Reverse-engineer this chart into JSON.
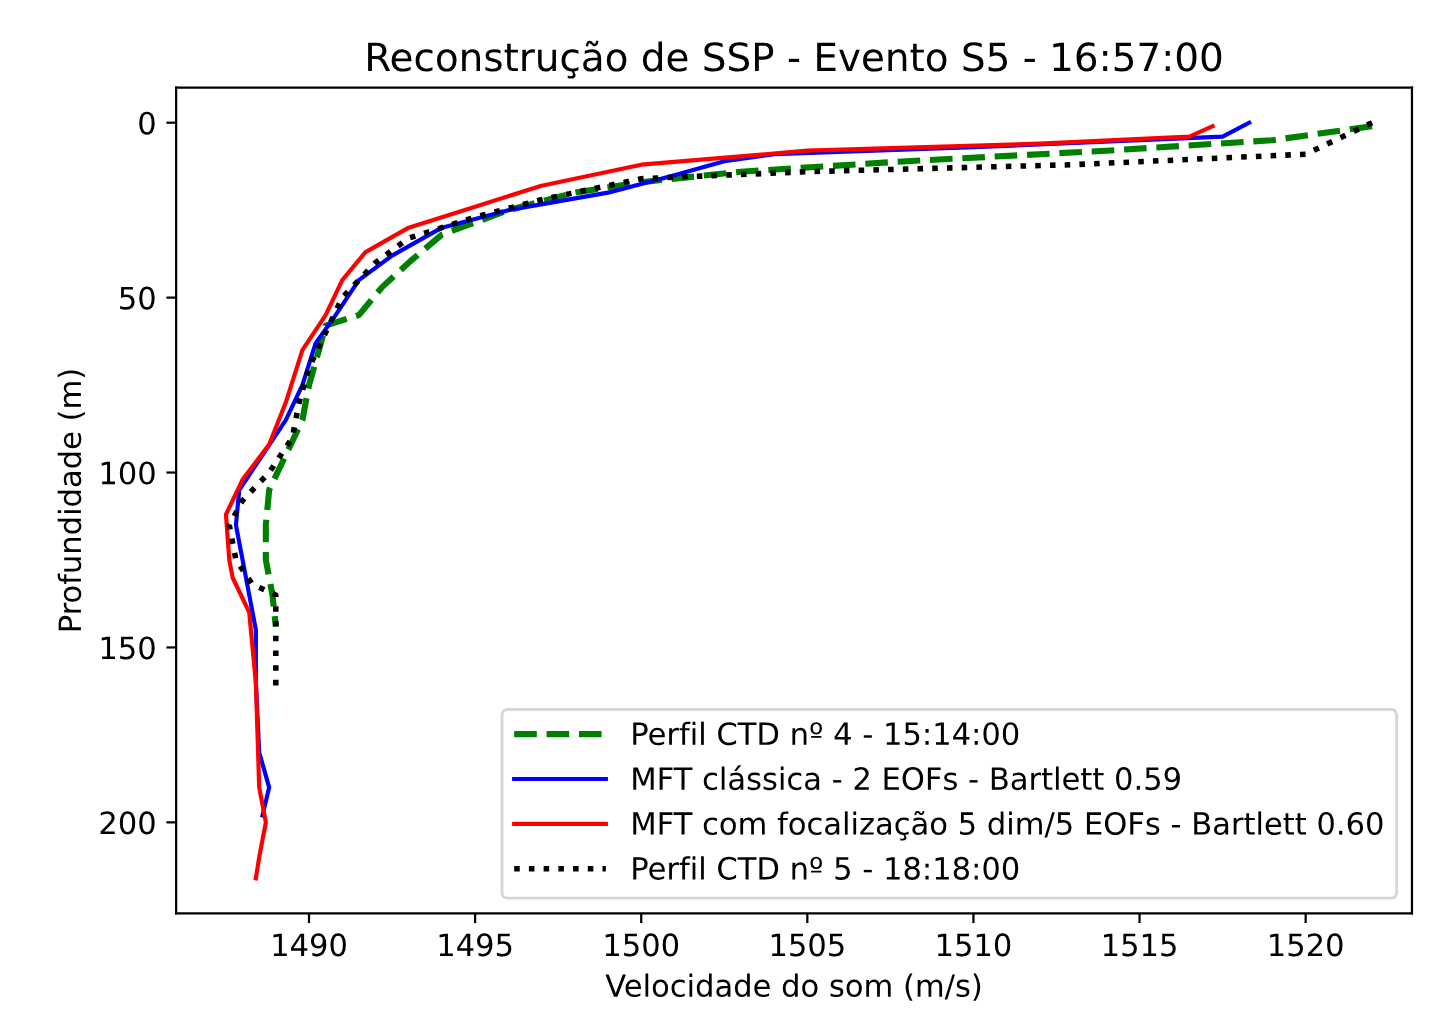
{
  "chart_data": {
    "type": "line",
    "title": "Reconstrução de SSP - Evento S5 - 16:57:00",
    "xlabel": "Velocidade do som (m/s)",
    "ylabel": "Profundidade (m)",
    "xlim": [
      1486,
      1523.2
    ],
    "xticks": [
      1490,
      1495,
      1500,
      1505,
      1510,
      1515,
      1520
    ],
    "ylim": [
      226,
      -10
    ],
    "yticks": [
      0,
      50,
      100,
      150,
      200
    ],
    "grid": false,
    "legend": "bottom right",
    "series": [
      {
        "name": "Perfil CTD nº 4 - 15:14:00",
        "color": "#008000",
        "line_style": "dashed",
        "x": [
          1522,
          1519,
          1514,
          1508,
          1503,
          1500,
          1498,
          1496,
          1494,
          1493,
          1492.2,
          1491.5,
          1490.5,
          1490.3,
          1490,
          1489.8,
          1489.3,
          1488.8,
          1488.7,
          1488.7,
          1488.9,
          1489
        ],
        "values": [
          1,
          5,
          8,
          11,
          14,
          17,
          20,
          25,
          32,
          40,
          47,
          55,
          58,
          65,
          75,
          85,
          95,
          105,
          115,
          125,
          135,
          144
        ]
      },
      {
        "name": "MFT clássica - 2 EOFs - Bartlett 0.59",
        "color": "#0000ff",
        "line_style": "solid",
        "x": [
          1518.3,
          1517.5,
          1510,
          1504,
          1502.5,
          1501,
          1499,
          1496,
          1494,
          1492.5,
          1491.5,
          1490.8,
          1490.2,
          1489.8,
          1489.3,
          1488.6,
          1487.9,
          1487.8,
          1488.1,
          1488.4,
          1488.4,
          1488.5,
          1488.8,
          1488.6
        ],
        "values": [
          0,
          4,
          7,
          9,
          11,
          15,
          20,
          25,
          30,
          38,
          45,
          55,
          63,
          75,
          85,
          95,
          105,
          115,
          130,
          145,
          160,
          180,
          190,
          198
        ]
      },
      {
        "name": "MFT com focalização 5 dim/5 EOFs - Bartlett 0.60",
        "color": "#ff0000",
        "line_style": "solid",
        "x": [
          1517.2,
          1516.5,
          1512,
          1505,
          1500,
          1497,
          1495,
          1493,
          1491.7,
          1491,
          1490.5,
          1489.8,
          1489.3,
          1488.8,
          1488,
          1487.5,
          1487.6,
          1487.7,
          1488.2,
          1488.4,
          1488.5,
          1488.7,
          1488.5,
          1488.4
        ],
        "values": [
          1,
          4,
          6,
          8,
          12,
          18,
          24,
          30,
          37,
          45,
          55,
          65,
          80,
          92,
          102,
          112,
          125,
          130,
          140,
          160,
          190,
          200,
          210,
          216
        ]
      },
      {
        "name": "Perfil CTD nº 5 - 18:18:00",
        "color": "#000000",
        "line_style": "dotted",
        "x": [
          1522,
          1520,
          1513,
          1505,
          1500,
          1497,
          1495,
          1493,
          1492,
          1491,
          1490.5,
          1490,
          1489.7,
          1489.5,
          1488.8,
          1488,
          1487.6,
          1487.8,
          1488.3,
          1489,
          1489,
          1489
        ],
        "values": [
          0,
          9,
          12,
          14,
          16,
          22,
          27,
          33,
          40,
          50,
          60,
          70,
          80,
          90,
          100,
          108,
          115,
          125,
          132,
          135,
          150,
          163
        ]
      }
    ]
  }
}
